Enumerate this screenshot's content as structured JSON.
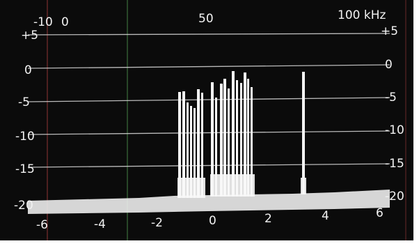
{
  "top_labels": [
    "-10",
    "0",
    "50",
    "100 kHz"
  ],
  "left_scale": [
    "+5",
    "0",
    "-5",
    "-10",
    "-15",
    "-20"
  ],
  "right_scale": [
    "+5",
    "0",
    "-5",
    "-10",
    "-15",
    "-20"
  ],
  "bottom_scale": [
    "-6",
    "-4",
    "-2",
    "0",
    "2",
    "4",
    "6"
  ],
  "colors": {
    "screen": "#0b0b0b",
    "trace": "#f5f5f5",
    "grid": "#d9d9d9",
    "green_marker": "#3d6e3d",
    "red_marker": "#7a3030"
  }
}
